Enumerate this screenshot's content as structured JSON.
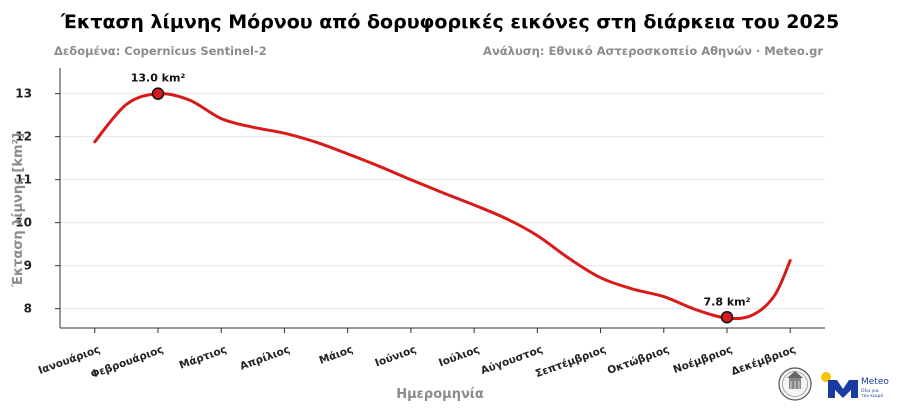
{
  "header": {
    "title": "Έκταση λίμνης Μόρνου από δορυφορικές εικόνες στη διάρκεια του 2025",
    "source_left": "Δεδομένα: Copernicus Sentinel-2",
    "source_right": "Ανάλυση: Εθνικό Αστεροσκοπείο Αθηνών · Meteo.gr"
  },
  "chart_data": {
    "type": "line",
    "title": "Έκταση λίμνης Μόρνου από δορυφορικές εικόνες στη διάρκεια του 2025",
    "xlabel": "Ημερομηνία",
    "ylabel": "Έκταση λίμνης [km²]",
    "categories": [
      "Ιανουάριος",
      "Φεβρουάριος",
      "Μάρτιος",
      "Απρίλιος",
      "Μάιος",
      "Ιούνιος",
      "Ιούλιος",
      "Αύγουστος",
      "Σεπτέμβριος",
      "Οκτώβριος",
      "Νοέμβριος",
      "Δεκέμβριος"
    ],
    "curve": [
      {
        "x": 0.0,
        "y": 11.88
      },
      {
        "x": 0.5,
        "y": 12.75
      },
      {
        "x": 1.0,
        "y": 13.0
      },
      {
        "x": 1.5,
        "y": 12.85
      },
      {
        "x": 2.0,
        "y": 12.42
      },
      {
        "x": 2.5,
        "y": 12.22
      },
      {
        "x": 3.0,
        "y": 12.08
      },
      {
        "x": 3.5,
        "y": 11.87
      },
      {
        "x": 4.0,
        "y": 11.6
      },
      {
        "x": 4.5,
        "y": 11.31
      },
      {
        "x": 5.0,
        "y": 11.0
      },
      {
        "x": 5.5,
        "y": 10.7
      },
      {
        "x": 6.0,
        "y": 10.41
      },
      {
        "x": 6.5,
        "y": 10.1
      },
      {
        "x": 7.0,
        "y": 9.7
      },
      {
        "x": 7.5,
        "y": 9.17
      },
      {
        "x": 8.0,
        "y": 8.72
      },
      {
        "x": 8.5,
        "y": 8.46
      },
      {
        "x": 9.0,
        "y": 8.28
      },
      {
        "x": 9.5,
        "y": 7.98
      },
      {
        "x": 10.0,
        "y": 7.78
      },
      {
        "x": 10.4,
        "y": 7.85
      },
      {
        "x": 10.75,
        "y": 8.3
      },
      {
        "x": 11.0,
        "y": 9.12
      }
    ],
    "markers": [
      {
        "x": 1.0,
        "y": 13.0,
        "label": "13.0 km²"
      },
      {
        "x": 10.0,
        "y": 7.8,
        "label": "7.8 km²"
      }
    ],
    "yticks": [
      8,
      9,
      10,
      11,
      12,
      13
    ],
    "ylim": [
      7.55,
      13.55
    ],
    "xlim": [
      -0.55,
      11.55
    ],
    "grid": true,
    "line_color": "#d91a1a",
    "marker_color": "#d41c1c"
  },
  "logos": {
    "meteo_name": "Meteo",
    "meteo_tagline_1": "Ολα για",
    "meteo_tagline_2": "τον καιρό",
    "meteo_blue": "#1a3c9e",
    "meteo_yellow": "#f5c400"
  }
}
